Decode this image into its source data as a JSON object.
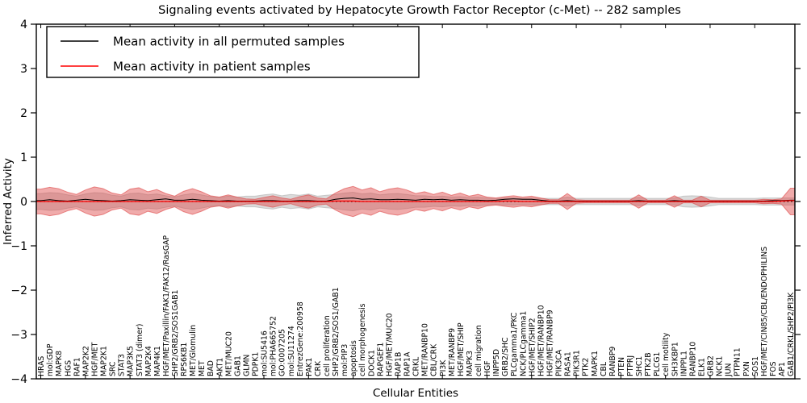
{
  "chart_data": {
    "type": "line",
    "title": "Signaling events activated by Hepatocyte Growth Factor Receptor (c-Met) -- 282 samples",
    "xlabel": "Cellular Entities",
    "ylabel": "Inferred Activity",
    "ylim": [
      -4,
      4
    ],
    "yticks": [
      4,
      3,
      2,
      1,
      0,
      -1,
      -2,
      -3,
      -4
    ],
    "ytick_labels": [
      "4",
      "3",
      "2",
      "1",
      "0",
      "−1",
      "−2",
      "−3",
      "−4"
    ],
    "legend_position": "upper left",
    "grid": false,
    "zero_line": {
      "style": "dotted",
      "color": "#000000",
      "y": 0
    },
    "categories": [
      "HRAS",
      "mol:GDP",
      "MAPK8",
      "HGS",
      "RAF1",
      "MAP2K2",
      "HGF/MET",
      "MAP2K1",
      "SRC",
      "STAT3",
      "MAP3K5",
      "STAT3 (dimer)",
      "MAP2K4",
      "MAP4K1",
      "HGF/MET/Paxillin/FAK1/FAK12/RasGAP",
      "SHP2/GRB2/SOS1GAB1",
      "RPS6KB1",
      "MET/Glomulin",
      "MET",
      "BAD",
      "AKT1",
      "MET/MUC20",
      "GAB1",
      "GLMN",
      "PDPK1",
      "mol:SU5416",
      "mol:PHA665752",
      "GO:0007205",
      "mol:SU11274",
      "EntrezGene:200958",
      "PAK1",
      "CRK",
      "cell proliferation",
      "SHP2/GRB2/SOS1/GAB1",
      "mol:PIP3",
      "apoptosis",
      "cell morphogenesis",
      "DOCK1",
      "RAPGEF1",
      "HGF/MET/MUC20",
      "RAP1B",
      "RAP1A",
      "CRKL",
      "MET/RANBP10",
      "CBL/CRK",
      "PI3K",
      "MET/RANBP9",
      "HGF/MET/SHIP",
      "MAPK3",
      "cell migration",
      "HGF",
      "INPP5D",
      "GRB2/SHC",
      "PLCgamma1/PKC",
      "NCK/PLCgamma1",
      "HGF/MET/SHIP2",
      "HGF/MET/RANBP10",
      "HGF/MET/RANBP9",
      "PIK3CA",
      "RASA1",
      "PIK3R1",
      "PTK2",
      "MAPK1",
      "CBL",
      "RANBP9",
      "PTEN",
      "PTPRJ",
      "SHC1",
      "PTK2B",
      "PLCG1",
      "cell motility",
      "SH3KBP1",
      "INPPL1",
      "RANBP10",
      "ELK1",
      "GRB2",
      "NCK1",
      "JUN",
      "PTPN11",
      "PXN",
      "SOS1",
      "HGF/MET/CIN85/CBL/ENDOPHILINS",
      "FOS",
      "AP1",
      "GAB1/CRKL/SHP2/PI3K"
    ],
    "series": [
      {
        "name": "Mean activity in all permuted samples",
        "color": "#000000",
        "values": [
          0.02,
          0.04,
          0.02,
          0.01,
          0.03,
          0.05,
          0.03,
          0.02,
          0.01,
          0.02,
          0.04,
          0.03,
          0.02,
          0.04,
          0.06,
          0.03,
          0.03,
          0.05,
          0.03,
          0.02,
          0.01,
          0.02,
          0.01,
          0.01,
          0.01,
          0.02,
          0.02,
          0.01,
          0.01,
          0.02,
          0.02,
          0.01,
          0.01,
          0.05,
          0.07,
          0.08,
          0.05,
          0.06,
          0.04,
          0.04,
          0.05,
          0.04,
          0.03,
          0.05,
          0.04,
          0.05,
          0.03,
          0.04,
          0.03,
          0.03,
          0.02,
          0.03,
          0.05,
          0.06,
          0.05,
          0.05,
          0.03,
          0.01,
          0.01,
          0.02,
          0.01,
          0.01,
          0.01,
          0.01,
          0.01,
          0.01,
          0.01,
          0.02,
          0.01,
          0.01,
          0.01,
          0.02,
          0.01,
          0.01,
          0.01,
          0.01,
          0.01,
          0.01,
          0.01,
          0.01,
          0.01,
          0.01,
          0.02,
          0.02,
          0.03
        ]
      },
      {
        "name": "Mean activity in patient samples",
        "color": "#ff0000",
        "values": [
          0,
          0,
          0,
          0,
          0,
          0,
          0,
          0,
          0,
          0,
          0,
          0,
          0,
          0,
          0,
          0,
          0,
          0,
          0,
          0,
          0,
          0,
          0,
          0,
          0,
          0,
          0,
          0,
          0,
          0,
          0,
          0,
          0,
          0.01,
          0.01,
          0.01,
          0,
          0,
          0,
          0,
          0,
          0,
          0,
          0,
          0,
          0,
          0,
          0,
          0,
          0,
          0,
          0,
          0.01,
          0.01,
          0,
          0,
          0,
          0,
          0,
          0,
          0,
          0,
          0,
          0,
          0,
          0,
          0,
          0,
          0,
          0,
          0,
          0,
          0,
          0,
          0,
          0,
          0,
          0,
          0,
          0,
          0,
          0,
          0,
          0.01,
          0.02
        ]
      }
    ],
    "bands": [
      {
        "name": "permuted-samples-envelope",
        "color": "#aaaaaa",
        "opacity": 0.42,
        "center": 0,
        "halfwidths": [
          0.18,
          0.2,
          0.19,
          0.15,
          0.12,
          0.17,
          0.2,
          0.19,
          0.14,
          0.12,
          0.18,
          0.19,
          0.15,
          0.17,
          0.13,
          0.1,
          0.15,
          0.18,
          0.15,
          0.11,
          0.09,
          0.12,
          0.1,
          0.12,
          0.12,
          0.15,
          0.17,
          0.13,
          0.16,
          0.14,
          0.17,
          0.12,
          0.14,
          0.16,
          0.19,
          0.21,
          0.17,
          0.19,
          0.15,
          0.17,
          0.18,
          0.16,
          0.13,
          0.13,
          0.11,
          0.12,
          0.1,
          0.11,
          0.09,
          0.1,
          0.08,
          0.07,
          0.08,
          0.08,
          0.07,
          0.08,
          0.07,
          0.07,
          0.07,
          0.1,
          0.07,
          0.07,
          0.07,
          0.07,
          0.07,
          0.07,
          0.07,
          0.09,
          0.07,
          0.07,
          0.07,
          0.08,
          0.12,
          0.13,
          0.12,
          0.1,
          0.07,
          0.07,
          0.07,
          0.07,
          0.07,
          0.08,
          0.08,
          0.08,
          0.08
        ]
      },
      {
        "name": "patient-samples-envelope",
        "color": "#dd4444",
        "opacity": 0.45,
        "center": 0,
        "halfwidths": [
          0.28,
          0.32,
          0.29,
          0.21,
          0.16,
          0.26,
          0.33,
          0.29,
          0.19,
          0.15,
          0.28,
          0.31,
          0.22,
          0.27,
          0.18,
          0.12,
          0.23,
          0.29,
          0.22,
          0.13,
          0.1,
          0.15,
          0.1,
          0.06,
          0.05,
          0.09,
          0.13,
          0.08,
          0.05,
          0.11,
          0.15,
          0.08,
          0.06,
          0.19,
          0.29,
          0.34,
          0.26,
          0.31,
          0.22,
          0.28,
          0.31,
          0.26,
          0.18,
          0.22,
          0.16,
          0.21,
          0.14,
          0.19,
          0.12,
          0.16,
          0.1,
          0.08,
          0.11,
          0.13,
          0.1,
          0.12,
          0.08,
          0.04,
          0.04,
          0.18,
          0.04,
          0.03,
          0.03,
          0.03,
          0.03,
          0.03,
          0.03,
          0.15,
          0.03,
          0.03,
          0.03,
          0.13,
          0.03,
          0.03,
          0.12,
          0.03,
          0.03,
          0.03,
          0.03,
          0.03,
          0.03,
          0.05,
          0.04,
          0.06,
          0.3
        ]
      }
    ]
  }
}
